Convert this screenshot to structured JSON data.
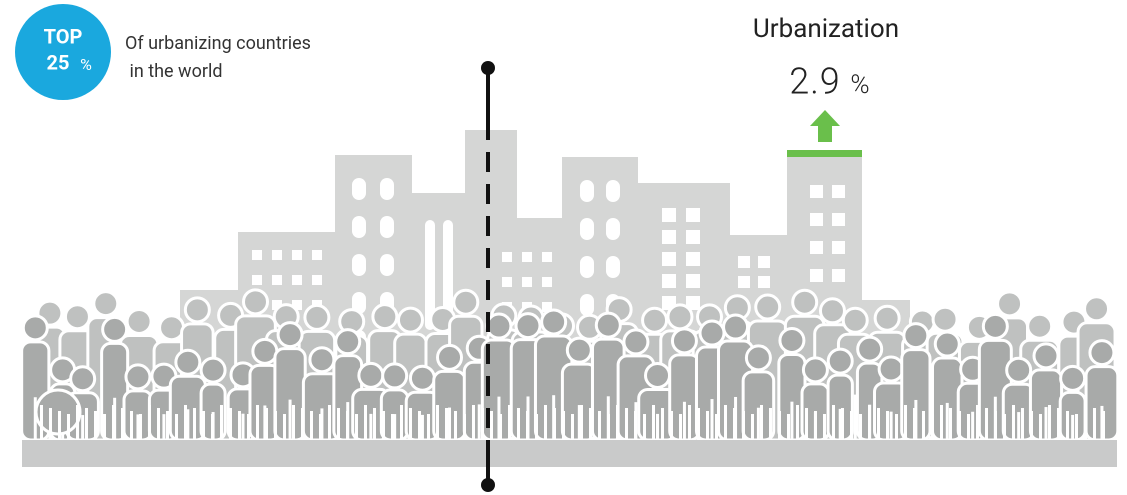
{
  "badge": {
    "line1": "TOP",
    "number": "25",
    "unit": "%"
  },
  "caption": {
    "line1": "Of urbanizing countries",
    "line2": " in the world"
  },
  "stat": {
    "label": "Urbanization",
    "value": "2.9",
    "unit": "%"
  }
}
